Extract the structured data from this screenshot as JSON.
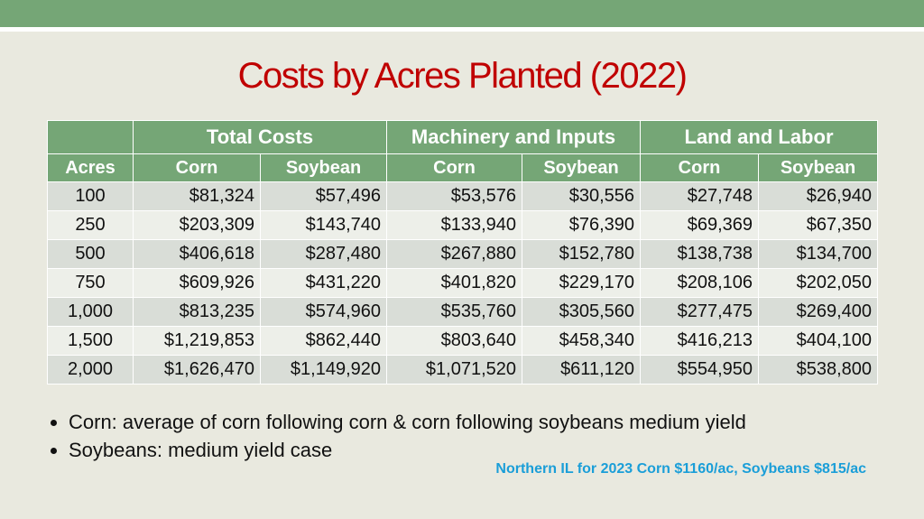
{
  "title": "Costs by Acres Planted (2022)",
  "table": {
    "group_headers": [
      "Total Costs",
      "Machinery and Inputs",
      "Land and Labor"
    ],
    "headers": [
      "Acres",
      "Corn",
      "Soybean",
      "Corn",
      "Soybean",
      "Corn",
      "Soybean"
    ],
    "rows": [
      [
        "100",
        "$81,324",
        "$57,496",
        "$53,576",
        "$30,556",
        "$27,748",
        "$26,940"
      ],
      [
        "250",
        "$203,309",
        "$143,740",
        "$133,940",
        "$76,390",
        "$69,369",
        "$67,350"
      ],
      [
        "500",
        "$406,618",
        "$287,480",
        "$267,880",
        "$152,780",
        "$138,738",
        "$134,700"
      ],
      [
        "750",
        "$609,926",
        "$431,220",
        "$401,820",
        "$229,170",
        "$208,106",
        "$202,050"
      ],
      [
        "1,000",
        "$813,235",
        "$574,960",
        "$535,760",
        "$305,560",
        "$277,475",
        "$269,400"
      ],
      [
        "1,500",
        "$1,219,853",
        "$862,440",
        "$803,640",
        "$458,340",
        "$416,213",
        "$404,100"
      ],
      [
        "2,000",
        "$1,626,470",
        "$1,149,920",
        "$1,071,520",
        "$611,120",
        "$554,950",
        "$538,800"
      ]
    ]
  },
  "bullets": [
    "Corn: average of corn following corn & corn following soybeans medium yield",
    "Soybeans: medium yield case"
  ],
  "note": "Northern IL for 2023 Corn $1160/ac, Soybeans $815/ac"
}
